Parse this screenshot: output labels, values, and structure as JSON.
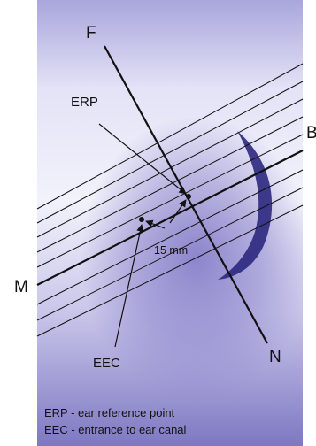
{
  "labels": {
    "F": "F",
    "B": "B",
    "M": "M",
    "N": "N",
    "ERP": "ERP",
    "EEC": "EEC",
    "distance": "15 mm"
  },
  "legend": [
    "ERP - ear reference point",
    "EEC - entrance to ear canal"
  ],
  "colors": {
    "line": "#111111",
    "ear": "#2c2880"
  }
}
